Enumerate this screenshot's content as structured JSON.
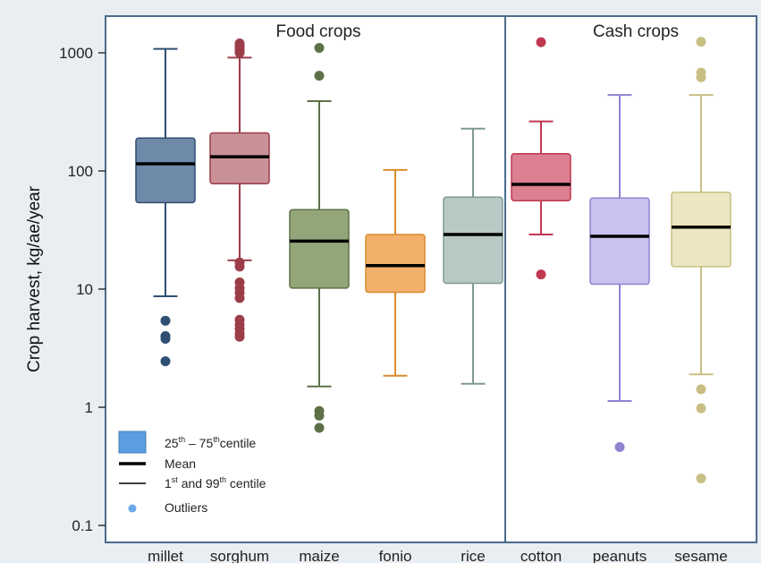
{
  "chart_data": {
    "type": "box",
    "ylabel": "Crop harvest, kg/ae/year",
    "yscale": "log",
    "ylim": [
      0.07,
      1500
    ],
    "yticks": [
      "0.1",
      "1",
      "10",
      "100",
      "1000"
    ],
    "panels": [
      {
        "title": "Food crops",
        "categories": [
          "millet",
          "sorghum",
          "maize",
          "fonio",
          "rice"
        ]
      },
      {
        "title": "Cash crops",
        "categories": [
          "cotton",
          "peanuts",
          "sesame"
        ]
      }
    ],
    "series": [
      {
        "category": "millet",
        "color": "#6f89a8",
        "stroke": "#2f4f72",
        "whisker_low": 8.7,
        "q1": 54,
        "mean": 115,
        "q3": 190,
        "whisker_high": 1080,
        "outliers": [
          5.4,
          4.0,
          3.8,
          2.45
        ]
      },
      {
        "category": "sorghum",
        "color": "#c99098",
        "stroke": "#9c3d4a",
        "whisker_low": 17.5,
        "q1": 78,
        "mean": 132,
        "q3": 210,
        "whisker_high": 910,
        "outliers": [
          1200,
          1150,
          1100,
          1050,
          1000,
          16.8,
          15.5,
          11.4,
          10.2,
          9.3,
          8.4,
          5.5,
          5.0,
          4.6,
          4.2,
          3.95
        ]
      },
      {
        "category": "maize",
        "color": "#93a67a",
        "stroke": "#5e7047",
        "whisker_low": 1.5,
        "q1": 10.2,
        "mean": 25.5,
        "q3": 47,
        "whisker_high": 390,
        "outliers": [
          1100,
          640,
          0.93,
          0.85,
          0.67
        ]
      },
      {
        "category": "fonio",
        "color": "#f2b06b",
        "stroke": "#d98c2e",
        "whisker_low": 1.85,
        "q1": 9.4,
        "mean": 15.8,
        "q3": 29,
        "whisker_high": 102,
        "outliers": []
      },
      {
        "category": "rice",
        "color": "#b8c9c5",
        "stroke": "#7f9995",
        "whisker_low": 1.58,
        "q1": 11.2,
        "mean": 29,
        "q3": 60,
        "whisker_high": 228,
        "outliers": []
      },
      {
        "category": "cotton",
        "color": "#db8090",
        "stroke": "#c03850",
        "whisker_low": 29,
        "q1": 56,
        "mean": 77,
        "q3": 140,
        "whisker_high": 263,
        "outliers": [
          1230,
          13.3
        ]
      },
      {
        "category": "peanuts",
        "color": "#c9c2ee",
        "stroke": "#8f84d0",
        "whisker_low": 1.13,
        "q1": 11,
        "mean": 28,
        "q3": 59,
        "whisker_high": 440,
        "outliers": [
          0.46
        ]
      },
      {
        "category": "sesame",
        "color": "#ece6c3",
        "stroke": "#c9bf84",
        "whisker_low": 1.9,
        "q1": 15.5,
        "mean": 33.5,
        "q3": 66,
        "whisker_high": 440,
        "outliers": [
          1240,
          680,
          620,
          1.42,
          0.98,
          0.25
        ]
      }
    ],
    "legend": {
      "position": "bottom-left",
      "items": [
        {
          "kind": "box",
          "label_parts": [
            "25",
            "th",
            " – 75",
            "th",
            "centile"
          ],
          "color": "#5b9ee0"
        },
        {
          "kind": "mean",
          "label": "Mean"
        },
        {
          "kind": "whisker",
          "label_parts": [
            "1",
            "st",
            " and 99",
            "th",
            " centile"
          ]
        },
        {
          "kind": "outlier",
          "label": "Outliers",
          "color": "#6aa8e8"
        }
      ]
    },
    "grid": false
  }
}
